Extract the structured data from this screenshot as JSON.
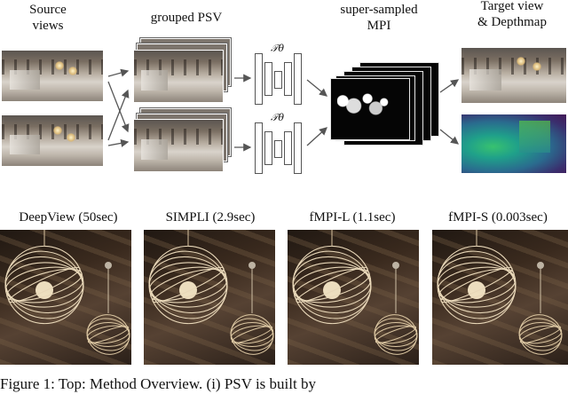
{
  "pipeline": {
    "source_views_label": "Source\nviews",
    "grouped_psv_label": "grouped PSV",
    "mpi_label": "super-sampled\nMPI",
    "target_label": "Target view\n& Depthmap",
    "network_symbol": "𝒯θ"
  },
  "comparison": [
    {
      "method": "DeepView",
      "time": "(50sec)",
      "label": "DeepView (50sec)"
    },
    {
      "method": "SIMPLI",
      "time": "(2.9sec)",
      "label": "SIMPLI (2.9sec)"
    },
    {
      "method": "fMPI-L",
      "time": "(1.1sec)",
      "label": "fMPI-L (1.1sec)"
    },
    {
      "method": "fMPI-S",
      "time": "(0.003sec)",
      "label": "fMPI-S (0.003sec)"
    }
  ],
  "caption": "Figure 1:  Top: Method Overview. (i) PSV is built by"
}
